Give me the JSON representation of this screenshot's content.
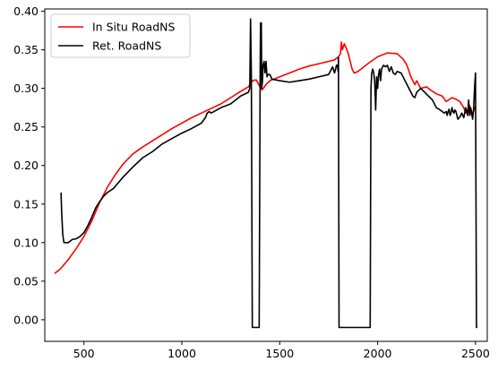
{
  "chart_data": {
    "type": "line",
    "title": "",
    "xlabel": "",
    "ylabel": "",
    "xlim": [
      300,
      2560
    ],
    "ylim": [
      -0.028,
      0.403
    ],
    "x_ticks": [
      500,
      1000,
      1500,
      2000,
      2500
    ],
    "x_tick_labels": [
      "500",
      "1000",
      "1500",
      "2000",
      "2500"
    ],
    "y_ticks": [
      0.0,
      0.05,
      0.1,
      0.15,
      0.2,
      0.25,
      0.3,
      0.35,
      0.4
    ],
    "y_tick_labels": [
      "0.00",
      "0.05",
      "0.10",
      "0.15",
      "0.20",
      "0.25",
      "0.30",
      "0.35",
      "0.40"
    ],
    "grid": false,
    "legend_position": "upper-left",
    "series": [
      {
        "name": "In Situ RoadNS",
        "color": "#ff0000",
        "x": [
          350,
          380,
          420,
          460,
          500,
          540,
          580,
          620,
          660,
          700,
          750,
          800,
          850,
          900,
          950,
          1000,
          1050,
          1100,
          1150,
          1200,
          1250,
          1300,
          1340,
          1360,
          1380,
          1395,
          1410,
          1430,
          1450,
          1500,
          1550,
          1600,
          1650,
          1700,
          1750,
          1780,
          1800,
          1810,
          1815,
          1820,
          1830,
          1840,
          1850,
          1860,
          1870,
          1880,
          1900,
          1950,
          2000,
          2050,
          2100,
          2130,
          2150,
          2170,
          2190,
          2200,
          2220,
          2250,
          2270,
          2300,
          2330,
          2350,
          2380,
          2400,
          2420,
          2440,
          2450,
          2460,
          2470,
          2480,
          2490,
          2500
        ],
        "y": [
          0.06,
          0.066,
          0.078,
          0.092,
          0.108,
          0.128,
          0.152,
          0.172,
          0.188,
          0.202,
          0.215,
          0.224,
          0.232,
          0.24,
          0.248,
          0.255,
          0.262,
          0.268,
          0.274,
          0.28,
          0.288,
          0.296,
          0.302,
          0.31,
          0.311,
          0.304,
          0.298,
          0.305,
          0.31,
          0.315,
          0.32,
          0.325,
          0.329,
          0.332,
          0.335,
          0.337,
          0.341,
          0.345,
          0.36,
          0.35,
          0.358,
          0.352,
          0.345,
          0.335,
          0.325,
          0.32,
          0.322,
          0.332,
          0.341,
          0.346,
          0.345,
          0.338,
          0.33,
          0.315,
          0.305,
          0.31,
          0.3,
          0.302,
          0.298,
          0.293,
          0.29,
          0.283,
          0.288,
          0.286,
          0.283,
          0.275,
          0.268,
          0.272,
          0.278,
          0.265,
          0.27,
          0.277
        ]
      },
      {
        "name": "Ret. RoadNS",
        "color": "#000000",
        "x": [
          383,
          386,
          392,
          398,
          405,
          420,
          440,
          460,
          480,
          500,
          520,
          540,
          560,
          580,
          600,
          620,
          650,
          700,
          750,
          800,
          850,
          900,
          950,
          1000,
          1050,
          1100,
          1120,
          1130,
          1140,
          1150,
          1200,
          1250,
          1300,
          1340,
          1347,
          1351,
          1355,
          1360,
          1380,
          1395,
          1400,
          1402,
          1406,
          1408,
          1412,
          1415,
          1420,
          1425,
          1430,
          1435,
          1440,
          1450,
          1460,
          1500,
          1550,
          1600,
          1650,
          1700,
          1750,
          1770,
          1780,
          1785,
          1790,
          1795,
          1798,
          1800,
          1803,
          1806,
          1810,
          1850,
          1900,
          1950,
          1962,
          1966,
          1970,
          1975,
          1980,
          1985,
          1990,
          1995,
          2000,
          2005,
          2010,
          2015,
          2020,
          2030,
          2040,
          2050,
          2060,
          2070,
          2080,
          2090,
          2100,
          2120,
          2140,
          2160,
          2180,
          2190,
          2200,
          2220,
          2240,
          2260,
          2280,
          2300,
          2320,
          2340,
          2350,
          2355,
          2360,
          2365,
          2370,
          2375,
          2380,
          2385,
          2390,
          2395,
          2400,
          2405,
          2410,
          2420,
          2430,
          2440,
          2450,
          2455,
          2460,
          2465,
          2470,
          2475,
          2480,
          2485,
          2490,
          2495,
          2500,
          2505,
          2510
        ],
        "y": [
          0.165,
          0.14,
          0.11,
          0.1,
          0.1,
          0.1,
          0.104,
          0.105,
          0.108,
          0.113,
          0.122,
          0.133,
          0.145,
          0.153,
          0.16,
          0.165,
          0.17,
          0.185,
          0.198,
          0.21,
          0.218,
          0.228,
          0.235,
          0.242,
          0.248,
          0.255,
          0.262,
          0.268,
          0.27,
          0.268,
          0.275,
          0.28,
          0.29,
          0.295,
          0.3,
          0.39,
          0.32,
          -0.01,
          -0.01,
          -0.01,
          0.32,
          0.385,
          0.385,
          0.3,
          0.31,
          0.33,
          0.335,
          0.32,
          0.335,
          0.315,
          0.318,
          0.318,
          0.312,
          0.31,
          0.308,
          0.31,
          0.312,
          0.315,
          0.318,
          0.328,
          0.32,
          0.325,
          0.33,
          0.33,
          0.322,
          0.34,
          -0.01,
          -0.01,
          -0.01,
          -0.01,
          -0.01,
          -0.01,
          -0.01,
          0.3,
          0.32,
          0.325,
          0.32,
          0.31,
          0.272,
          0.315,
          0.3,
          0.318,
          0.325,
          0.31,
          0.325,
          0.33,
          0.328,
          0.33,
          0.322,
          0.328,
          0.32,
          0.318,
          0.322,
          0.32,
          0.31,
          0.3,
          0.29,
          0.288,
          0.295,
          0.3,
          0.295,
          0.29,
          0.285,
          0.275,
          0.272,
          0.268,
          0.27,
          0.265,
          0.27,
          0.273,
          0.265,
          0.268,
          0.275,
          0.27,
          0.268,
          0.272,
          0.27,
          0.265,
          0.26,
          0.263,
          0.268,
          0.262,
          0.275,
          0.27,
          0.265,
          0.285,
          0.265,
          0.275,
          0.27,
          0.26,
          0.272,
          0.3,
          0.32,
          -0.01,
          -0.01
        ]
      }
    ]
  }
}
